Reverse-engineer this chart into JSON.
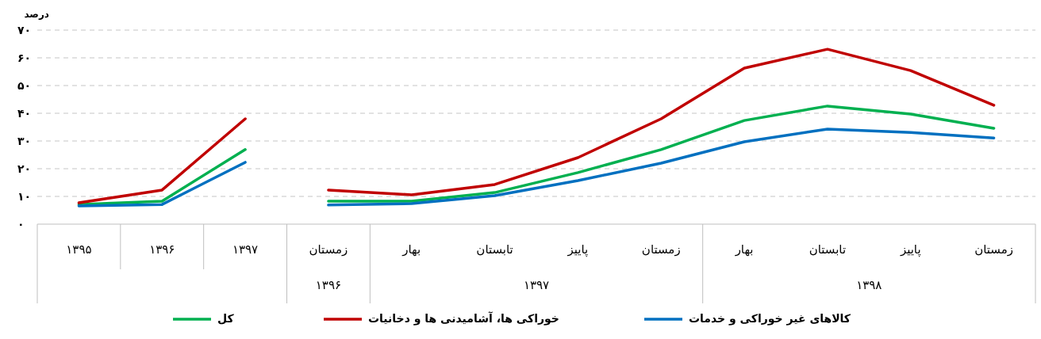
{
  "chart_data": {
    "type": "line",
    "ylabel": "درصد",
    "categories": [
      "۱۳۹۵",
      "۱۳۹۶",
      "۱۳۹۷",
      "زمستان",
      "بهار",
      "تابستان",
      "پاییز",
      "زمستان",
      "بهار",
      "تابستان",
      "پاییز",
      "زمستان"
    ],
    "annotations": [
      "۱۳۹۶",
      "۱۳۹۷",
      "۱۳۹۸"
    ],
    "ylim": [
      0,
      70
    ],
    "yticks": [
      {
        "value": 0,
        "label": "۰"
      },
      {
        "value": 10,
        "label": "۱۰"
      },
      {
        "value": 20,
        "label": "۲۰"
      },
      {
        "value": 30,
        "label": "۳۰"
      },
      {
        "value": 40,
        "label": "۴۰"
      },
      {
        "value": 50,
        "label": "۵۰"
      },
      {
        "value": 60,
        "label": "۶۰"
      },
      {
        "value": 70,
        "label": "۷۰"
      }
    ],
    "grid": "y",
    "legend": "bottom",
    "line_style": "solid",
    "series": [
      {
        "name": "کل",
        "color": "#00b050",
        "values": [
          null,
          null,
          null,
          8.3,
          8.3,
          11.4,
          18.6,
          26.9,
          37.4,
          42.6,
          39.7,
          34.6
        ]
      },
      {
        "name": "خوراکی ها، آشامیدنی ها و دخانیات",
        "color": "#c00000",
        "values": [
          null,
          null,
          null,
          12.3,
          10.6,
          14.3,
          24,
          38,
          56.3,
          63.1,
          55.4,
          42.9
        ]
      },
      {
        "name": "کالاهای غیر خوراکی و خدمات",
        "color": "#0070c0",
        "values": [
          null,
          null,
          null,
          6.9,
          7.4,
          10.3,
          15.7,
          22,
          29.7,
          34.3,
          33.1,
          31.1
        ]
      },
      {
        "color": "#00b050",
        "values": [
          7.1,
          8.3,
          26.9,
          null,
          null,
          null,
          null,
          null,
          null,
          null,
          null,
          null
        ]
      },
      {
        "color": "#c00000",
        "values": [
          7.7,
          12.3,
          38,
          null,
          null,
          null,
          null,
          null,
          null,
          null,
          null,
          null
        ]
      },
      {
        "color": "#0070c0",
        "values": [
          6.6,
          7.1,
          22.3,
          null,
          null,
          null,
          null,
          null,
          null,
          null,
          null,
          null
        ]
      }
    ]
  }
}
